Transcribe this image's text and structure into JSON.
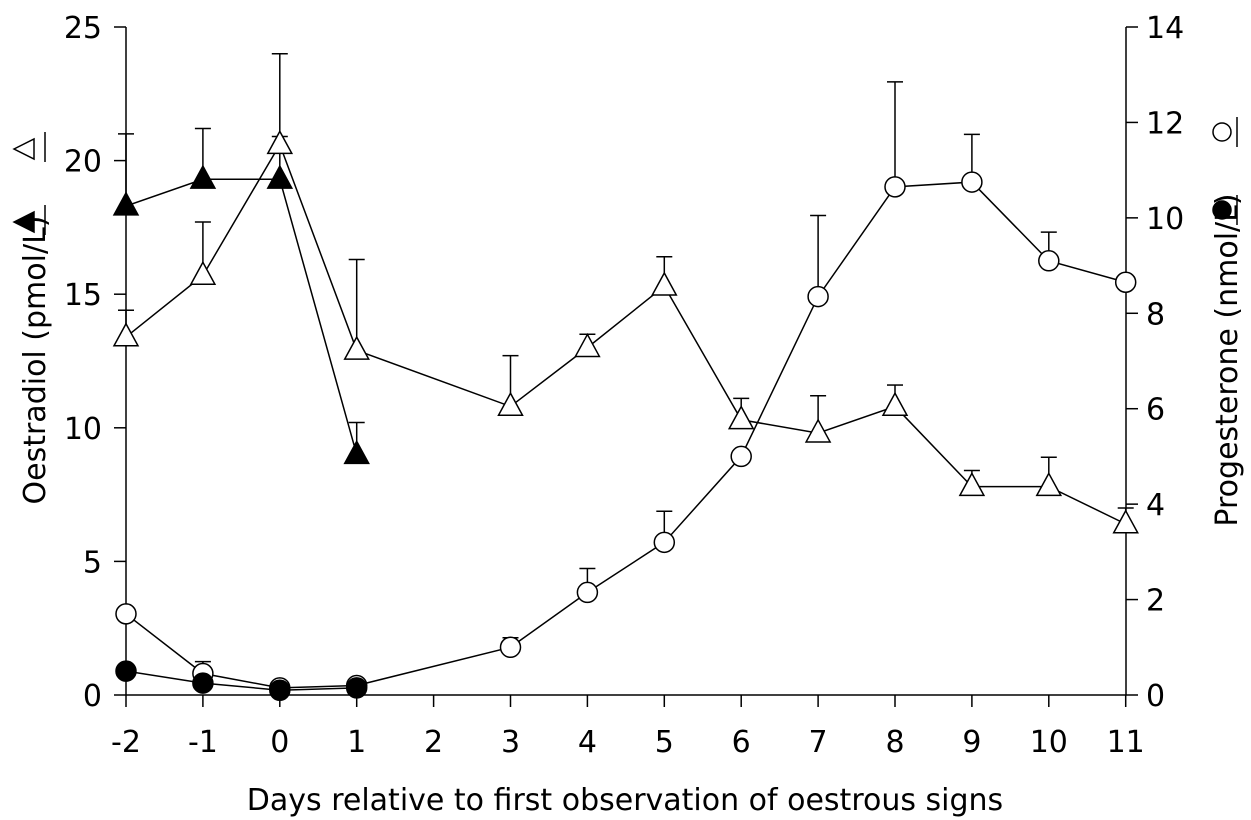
{
  "chart_data": {
    "type": "line",
    "title": "",
    "xlabel": "Days relative to first observation of oestrous signs",
    "ylabel_left": "Oestradiol (pmol/L)",
    "ylabel_right": "Progesterone (nmol/L)",
    "x_categories": [
      "-2",
      "-1",
      "0",
      "1",
      "2",
      "3",
      "4",
      "5",
      "6",
      "7",
      "8",
      "9",
      "10",
      "11"
    ],
    "ylim_left": [
      0,
      25
    ],
    "yticks_left": [
      0,
      5,
      10,
      15,
      20,
      25
    ],
    "ylim_right": [
      0,
      14
    ],
    "yticks_right": [
      0,
      2,
      4,
      6,
      8,
      10,
      12,
      14
    ],
    "grid": false,
    "series": [
      {
        "key": "oestradiol_open",
        "axis": "left",
        "marker": "triangle",
        "fill": "open",
        "x": [
          "-2",
          "-1",
          "0",
          "1",
          "3",
          "4",
          "5",
          "6",
          "7",
          "8",
          "9",
          "10",
          "11"
        ],
        "y": [
          13.4,
          15.7,
          20.6,
          12.9,
          10.8,
          13.0,
          15.3,
          10.3,
          9.8,
          10.8,
          7.8,
          7.8,
          6.4
        ],
        "err": [
          1.0,
          2.0,
          3.4,
          3.4,
          1.9,
          0.5,
          1.1,
          0.8,
          1.4,
          0.8,
          0.6,
          1.1,
          0.6
        ]
      },
      {
        "key": "oestradiol_filled",
        "axis": "left",
        "marker": "triangle",
        "fill": "filled",
        "x": [
          "-2",
          "-1",
          "0",
          "1"
        ],
        "y": [
          18.3,
          19.3,
          19.3,
          9.0
        ],
        "err": [
          2.7,
          1.9,
          1.6,
          1.2
        ]
      },
      {
        "key": "progesterone_open",
        "axis": "right",
        "marker": "circle",
        "fill": "open",
        "x": [
          "-2",
          "-1",
          "0",
          "1",
          "3",
          "4",
          "5",
          "6",
          "7",
          "8",
          "9",
          "10",
          "11"
        ],
        "y": [
          1.7,
          0.45,
          0.15,
          0.2,
          1.0,
          2.15,
          3.2,
          5.0,
          8.35,
          10.65,
          10.75,
          9.1,
          8.65
        ],
        "err": [
          0,
          0.25,
          0,
          0,
          0.2,
          0.5,
          0.65,
          0,
          1.7,
          2.2,
          1.0,
          0.6,
          0
        ]
      },
      {
        "key": "progesterone_filled",
        "axis": "right",
        "marker": "circle",
        "fill": "filled",
        "x": [
          "-2",
          "-1",
          "0",
          "1"
        ],
        "y": [
          0.5,
          0.25,
          0.1,
          0.15
        ],
        "err": [
          0,
          0,
          0,
          0
        ]
      }
    ]
  }
}
